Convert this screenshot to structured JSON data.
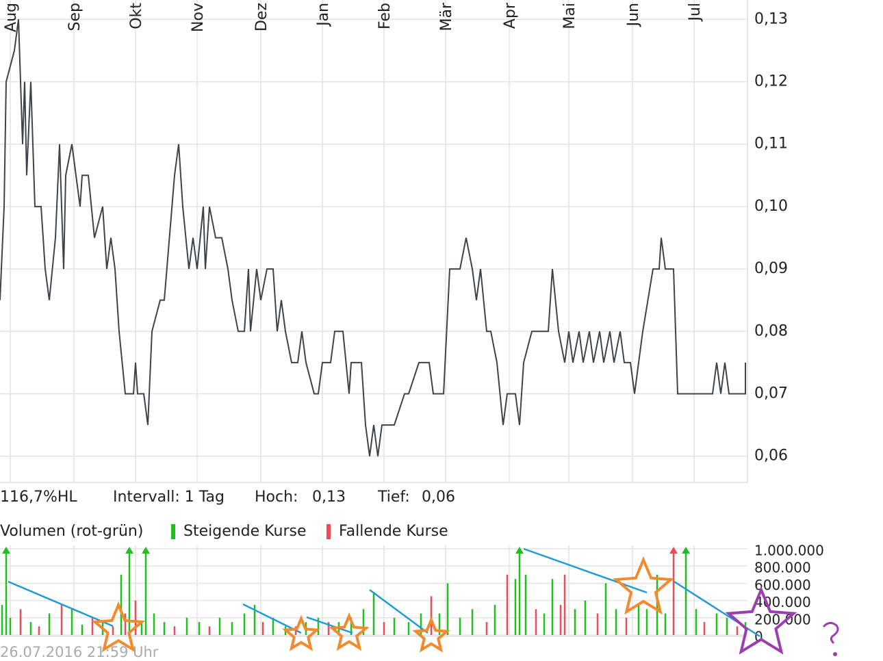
{
  "chart_data": [
    {
      "type": "line",
      "color": "#3d4348",
      "x": [
        0,
        2,
        3,
        7,
        9,
        11,
        12,
        13,
        15,
        17,
        20,
        22,
        24,
        27,
        29,
        31,
        32,
        35,
        39,
        40,
        43,
        46,
        50,
        52,
        54,
        56,
        58,
        61,
        65,
        66,
        67,
        70,
        72,
        74,
        78,
        80,
        85,
        87,
        89,
        92,
        94,
        96,
        99,
        100,
        102,
        105,
        108,
        111,
        113,
        116,
        119,
        121,
        122,
        125,
        127,
        130,
        133,
        135,
        137,
        139,
        142,
        145,
        147,
        149,
        153,
        155,
        157,
        161,
        163,
        167,
        170,
        171,
        176,
        178,
        180,
        182,
        184,
        186,
        192,
        197,
        199,
        204,
        209,
        211,
        216,
        219,
        224,
        227,
        230,
        232,
        234,
        237,
        239,
        242,
        245,
        247,
        251,
        253,
        255,
        259,
        263,
        267,
        269,
        272,
        275,
        277,
        279,
        282,
        284,
        287,
        289,
        292,
        294,
        297,
        299,
        302,
        304,
        307,
        309,
        313,
        318,
        321,
        322,
        324,
        328,
        330,
        333,
        347,
        349,
        351,
        353,
        355,
        363,
        363
      ],
      "values": [
        0.085,
        0.1,
        0.12,
        0.125,
        0.13,
        0.11,
        0.12,
        0.105,
        0.12,
        0.1,
        0.1,
        0.09,
        0.085,
        0.095,
        0.11,
        0.09,
        0.105,
        0.11,
        0.1,
        0.105,
        0.105,
        0.095,
        0.1,
        0.09,
        0.095,
        0.09,
        0.08,
        0.07,
        0.07,
        0.075,
        0.07,
        0.07,
        0.065,
        0.08,
        0.085,
        0.085,
        0.105,
        0.11,
        0.1,
        0.09,
        0.095,
        0.09,
        0.1,
        0.09,
        0.1,
        0.095,
        0.095,
        0.09,
        0.085,
        0.08,
        0.08,
        0.09,
        0.08,
        0.09,
        0.085,
        0.09,
        0.09,
        0.08,
        0.085,
        0.08,
        0.075,
        0.075,
        0.08,
        0.075,
        0.07,
        0.07,
        0.075,
        0.075,
        0.08,
        0.08,
        0.07,
        0.075,
        0.075,
        0.065,
        0.06,
        0.065,
        0.06,
        0.065,
        0.065,
        0.07,
        0.07,
        0.075,
        0.075,
        0.07,
        0.07,
        0.09,
        0.09,
        0.095,
        0.09,
        0.085,
        0.09,
        0.08,
        0.08,
        0.075,
        0.065,
        0.07,
        0.07,
        0.065,
        0.075,
        0.08,
        0.08,
        0.08,
        0.09,
        0.08,
        0.075,
        0.08,
        0.075,
        0.08,
        0.075,
        0.08,
        0.075,
        0.08,
        0.075,
        0.08,
        0.075,
        0.08,
        0.075,
        0.075,
        0.07,
        0.08,
        0.09,
        0.09,
        0.095,
        0.09,
        0.09,
        0.07,
        0.07,
        0.07,
        0.075,
        0.07,
        0.075,
        0.07,
        0.07,
        0.075
      ],
      "xlim": [
        0,
        364
      ],
      "xticks": [
        {
          "value": 5,
          "label": "Aug"
        },
        {
          "value": 36,
          "label": "Sep"
        },
        {
          "value": 66,
          "label": "Okt"
        },
        {
          "value": 96,
          "label": "Nov"
        },
        {
          "value": 127,
          "label": "Dez"
        },
        {
          "value": 157,
          "label": "Jan"
        },
        {
          "value": 187,
          "label": "Feb"
        },
        {
          "value": 217,
          "label": "Mär"
        },
        {
          "value": 248,
          "label": "Apr"
        },
        {
          "value": 277,
          "label": "Mai"
        },
        {
          "value": 308,
          "label": "Jun"
        },
        {
          "value": 338,
          "label": "Jul"
        }
      ],
      "ylim": [
        0.0558,
        0.1331
      ],
      "yticks": [
        {
          "value": 0.06,
          "label": "0,06"
        },
        {
          "value": 0.07,
          "label": "0,07"
        },
        {
          "value": 0.08,
          "label": "0,08"
        },
        {
          "value": 0.09,
          "label": "0,09"
        },
        {
          "value": 0.1,
          "label": "0,10"
        },
        {
          "value": 0.11,
          "label": "0,11"
        },
        {
          "value": 0.12,
          "label": "0,12"
        },
        {
          "value": 0.13,
          "label": "0,13"
        }
      ],
      "grid": true,
      "stats": [
        "116,7%HL",
        "Intervall: 1 Tag",
        "Hoch:",
        "0,13",
        "Tief:",
        "0,06"
      ]
    },
    {
      "type": "bar",
      "title": "Volumen (rot-grün)",
      "series": [
        {
          "name": "Steigende Kurse",
          "color": "#1fbf1f",
          "x": [
            1,
            3,
            5,
            15,
            24,
            35,
            40,
            50,
            59,
            63,
            69,
            71,
            75,
            80,
            91,
            97,
            107,
            113,
            119,
            124,
            133,
            139,
            149,
            155,
            165,
            171,
            177,
            182,
            192,
            199,
            205,
            214,
            218,
            224,
            230,
            241,
            251,
            253,
            256,
            265,
            269,
            280,
            285,
            295,
            300,
            311,
            315,
            320,
            324,
            334,
            339,
            349,
            354,
            363
          ],
          "values": [
            350000,
            1000000,
            200000,
            150000,
            250000,
            300000,
            120000,
            150000,
            700000,
            1000000,
            150000,
            1000000,
            250000,
            150000,
            200000,
            150000,
            200000,
            150000,
            250000,
            350000,
            200000,
            100000,
            150000,
            200000,
            150000,
            200000,
            300000,
            500000,
            200000,
            150000,
            250000,
            250000,
            600000,
            200000,
            300000,
            350000,
            650000,
            1000000,
            700000,
            250000,
            650000,
            300000,
            400000,
            600000,
            300000,
            350000,
            300000,
            700000,
            250000,
            1000000,
            300000,
            250000,
            200000,
            150000
          ]
        },
        {
          "name": "Fallende Kurse",
          "color": "#ee4a5a",
          "x": [
            10,
            19,
            30,
            45,
            55,
            61,
            66,
            85,
            102,
            128,
            144,
            160,
            187,
            210,
            237,
            247,
            261,
            273,
            275,
            291,
            305,
            328,
            343,
            359
          ],
          "values": [
            300000,
            100000,
            350000,
            200000,
            100000,
            250000,
            400000,
            100000,
            100000,
            150000,
            100000,
            150000,
            150000,
            450000,
            150000,
            700000,
            300000,
            350000,
            700000,
            250000,
            200000,
            1000000,
            150000,
            100000
          ]
        }
      ],
      "xlim": [
        0,
        364
      ],
      "ylim": [
        0,
        1040000
      ],
      "yticks": [
        0,
        {
          "value": 200000,
          "label": "200.000"
        },
        {
          "value": 400000,
          "label": "400.000"
        },
        {
          "value": 600000,
          "label": "600.000"
        },
        {
          "value": 800000,
          "label": "800.000"
        },
        {
          "value": 1000000,
          "label": "1.000.000"
        }
      ],
      "grid": true
    }
  ],
  "footer": "26.07.2016 21:59 Uhr"
}
